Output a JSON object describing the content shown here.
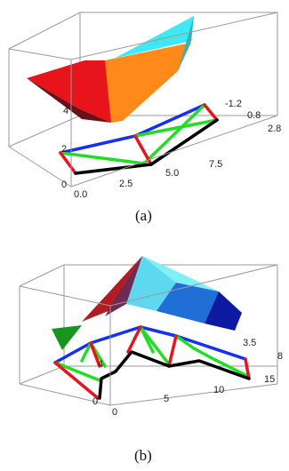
{
  "panels": [
    {
      "caption": "(a)",
      "ticks_x": [
        "0.0",
        "2.5",
        "5.0",
        "7.5"
      ],
      "ticks_y": [
        "-1.2",
        "0.8",
        "2.8"
      ],
      "ticks_z": [
        "0",
        "2",
        "4"
      ]
    },
    {
      "caption": "(b)",
      "ticks_x": [
        "0",
        "5",
        "10",
        "15"
      ],
      "ticks_y": [
        "3.5",
        "8"
      ],
      "ticks_z": [
        "0",
        "4"
      ]
    }
  ],
  "colors": {
    "red": "#e8141c",
    "orange": "#ff8a1a",
    "cyan": "#3fe8f2",
    "blue": "#1430f0",
    "green": "#22dd22",
    "black": "#000000",
    "navy": "#0b1aa0",
    "box": "#9a9a9a"
  }
}
